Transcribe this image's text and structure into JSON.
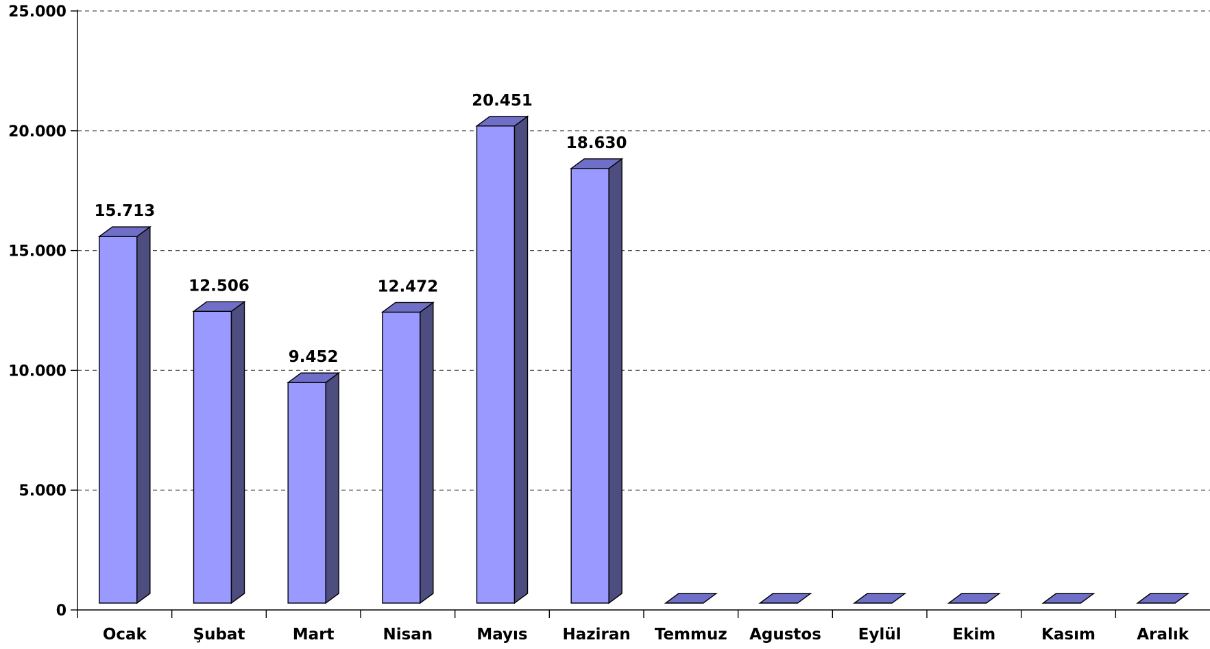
{
  "chart_data": {
    "type": "bar",
    "style": "3d-column",
    "categories": [
      "Ocak",
      "Şubat",
      "Mart",
      "Nisan",
      "Mayıs",
      "Haziran",
      "Temmuz",
      "Agustos",
      "Eylül",
      "Ekim",
      "Kasım",
      "Aralık"
    ],
    "values": [
      15713,
      12506,
      9452,
      12472,
      20451,
      18630,
      0,
      0,
      0,
      0,
      0,
      0
    ],
    "value_labels": [
      "15.713",
      "12.506",
      "9.452",
      "12.472",
      "20.451",
      "18.630",
      "",
      "",
      "",
      "",
      "",
      ""
    ],
    "ylim": [
      0,
      25000
    ],
    "yticks": [
      {
        "value": 0,
        "label": "0"
      },
      {
        "value": 5000,
        "label": "5.000"
      },
      {
        "value": 10000,
        "label": "10.000"
      },
      {
        "value": 15000,
        "label": "15.000"
      },
      {
        "value": 20000,
        "label": "20.000"
      },
      {
        "value": 25000,
        "label": "25.000"
      }
    ],
    "grid": true,
    "grid_style": "dashed",
    "legend": false,
    "colors": {
      "bar_front": "#9999ff",
      "bar_side": "#4d4d80",
      "bar_top": "#6f6fc8",
      "outline": "#000000",
      "grid": "#555555"
    }
  }
}
